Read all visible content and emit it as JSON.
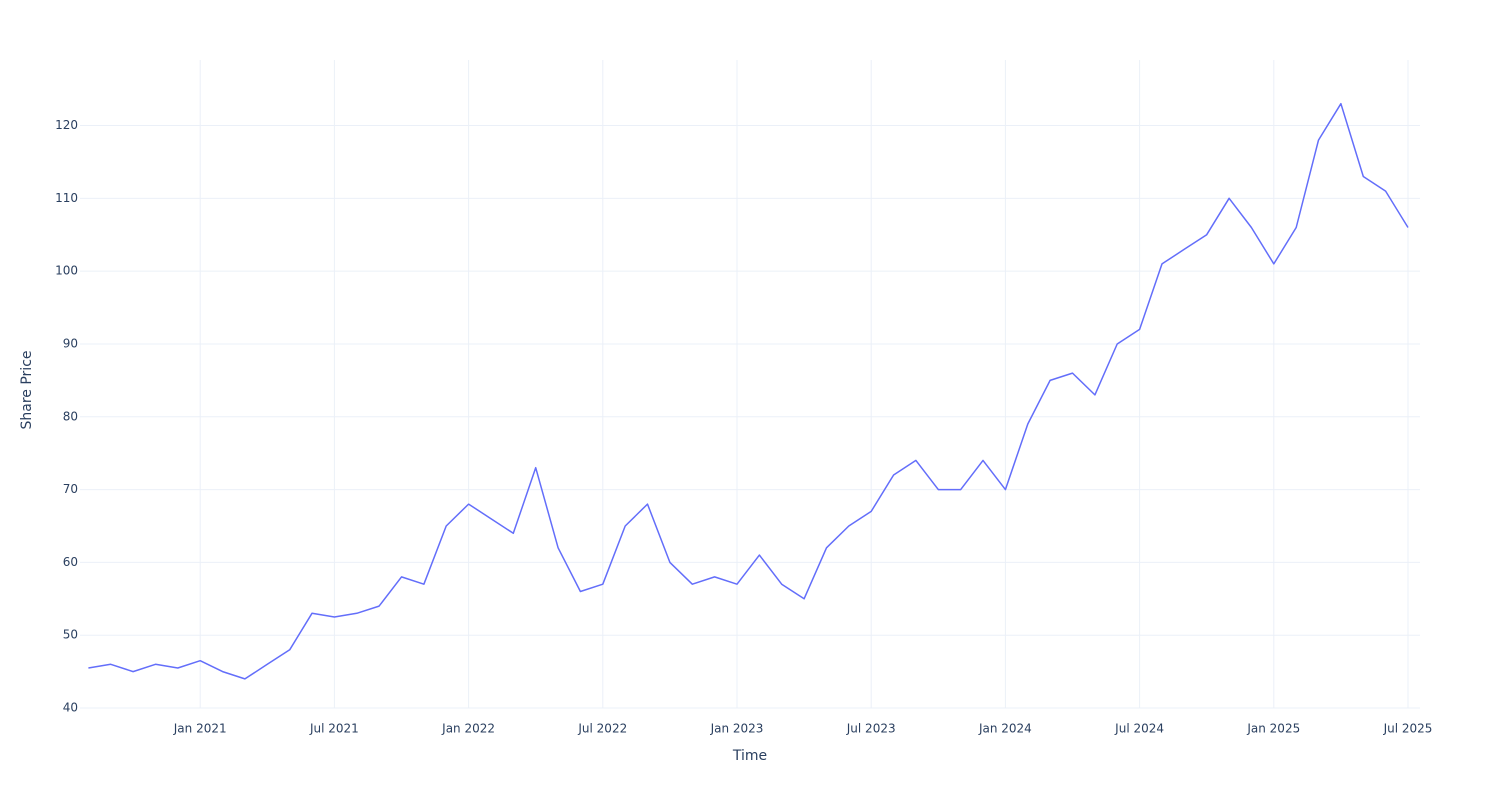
{
  "chart_data": {
    "type": "line",
    "x_label": "Time",
    "y_label": "Share Price",
    "x": [
      "2020-08",
      "2020-09",
      "2020-10",
      "2020-11",
      "2020-12",
      "2021-01",
      "2021-02",
      "2021-03",
      "2021-04",
      "2021-05",
      "2021-06",
      "2021-07",
      "2021-08",
      "2021-09",
      "2021-10",
      "2021-11",
      "2021-12",
      "2022-01",
      "2022-02",
      "2022-03",
      "2022-04",
      "2022-05",
      "2022-06",
      "2022-07",
      "2022-08",
      "2022-09",
      "2022-10",
      "2022-11",
      "2022-12",
      "2023-01",
      "2023-02",
      "2023-03",
      "2023-04",
      "2023-05",
      "2023-06",
      "2023-07",
      "2023-08",
      "2023-09",
      "2023-10",
      "2023-11",
      "2023-12",
      "2024-01",
      "2024-02",
      "2024-03",
      "2024-04",
      "2024-05",
      "2024-06",
      "2024-07",
      "2024-08",
      "2024-09",
      "2024-10",
      "2024-11",
      "2024-12",
      "2025-01",
      "2025-02",
      "2025-03",
      "2025-04",
      "2025-05",
      "2025-06",
      "2025-07"
    ],
    "series": [
      {
        "color": "#636efa",
        "values": [
          45.5,
          46,
          45,
          46,
          45.5,
          46.5,
          45,
          44,
          46,
          48,
          53,
          52.5,
          53,
          54,
          58,
          57,
          65,
          68,
          66,
          64,
          73,
          62,
          56,
          57,
          65,
          68,
          60,
          57,
          58,
          57,
          61,
          57,
          55,
          62,
          65,
          67,
          72,
          74,
          70,
          70,
          74,
          70,
          79,
          85,
          86,
          83,
          90,
          92,
          101,
          103,
          105,
          110,
          106,
          101,
          106,
          118,
          123,
          113,
          111,
          106
        ]
      }
    ],
    "xlim": [
      "2020-07",
      "2025-07"
    ],
    "xticks": [
      {
        "value": "2021-01",
        "label": "Jan 2021"
      },
      {
        "value": "2021-07",
        "label": "Jul 2021"
      },
      {
        "value": "2022-01",
        "label": "Jan 2022"
      },
      {
        "value": "2022-07",
        "label": "Jul 2022"
      },
      {
        "value": "2023-01",
        "label": "Jan 2023"
      },
      {
        "value": "2023-07",
        "label": "Jul 2023"
      },
      {
        "value": "2024-01",
        "label": "Jan 2024"
      },
      {
        "value": "2024-07",
        "label": "Jul 2024"
      },
      {
        "value": "2025-01",
        "label": "Jan 2025"
      },
      {
        "value": "2025-07",
        "label": "Jul 2025"
      }
    ],
    "ylim": [
      40,
      129
    ],
    "yticks": [
      40,
      50,
      60,
      70,
      80,
      90,
      100,
      110,
      120
    ],
    "grid": true
  }
}
